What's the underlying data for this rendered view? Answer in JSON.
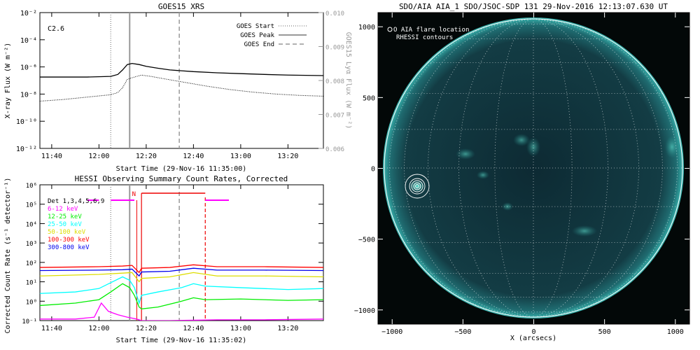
{
  "chart_data": [
    {
      "type": "line",
      "title": "GOES15 XRS",
      "xlabel": "Start Time (29-Nov-16 11:35:00)",
      "ylabel": "X-ray Flux (W m⁻²)",
      "ylabel_right": "GOES15 Lyα Flux (W m⁻²)",
      "x_ticks": [
        "11:40",
        "12:00",
        "12:20",
        "12:40",
        "13:00",
        "13:20"
      ],
      "y_ticks": [
        "10⁻²",
        "10⁻⁴",
        "10⁻⁶",
        "10⁻⁸",
        "10⁻¹⁰",
        "10⁻¹²"
      ],
      "y_ticks_right": [
        "0.010",
        "0.009",
        "0.008",
        "0.007",
        "0.006"
      ],
      "y_log": true,
      "ylim": [
        1e-12,
        0.01
      ],
      "ylim_right": [
        0.006,
        0.01
      ],
      "xlim": [
        "11:35",
        "13:35"
      ],
      "class_label": "C2.6",
      "legend": [
        {
          "label": "GOES Start",
          "style": "dotted",
          "time": "12:05"
        },
        {
          "label": "GOES Peak",
          "style": "solid",
          "time": "12:13"
        },
        {
          "label": "GOES End",
          "style": "dashed",
          "time": "12:34"
        }
      ],
      "series": [
        {
          "style": "solid",
          "x": [
            "11:35",
            "11:45",
            "11:55",
            "12:05",
            "12:08",
            "12:10",
            "12:12",
            "12:14",
            "12:17",
            "12:20",
            "12:25",
            "12:30",
            "12:40",
            "12:50",
            "13:00",
            "13:10",
            "13:20",
            "13:35"
          ],
          "values": [
            1.8e-07,
            1.8e-07,
            1.8e-07,
            2e-07,
            2.8e-07,
            6e-07,
            1.5e-06,
            1.8e-06,
            1.5e-06,
            1.1e-06,
            8e-07,
            6e-07,
            4.5e-07,
            3.7e-07,
            3.2e-07,
            2.8e-07,
            2.5e-07,
            2.3e-07
          ]
        },
        {
          "style": "dotted",
          "x": [
            "11:35",
            "11:45",
            "11:55",
            "12:05",
            "12:08",
            "12:10",
            "12:12",
            "12:14",
            "12:18",
            "12:22",
            "12:28",
            "12:35",
            "12:45",
            "12:55",
            "13:05",
            "13:15",
            "13:25",
            "13:35"
          ],
          "values": [
            3e-09,
            4e-09,
            6e-09,
            9e-09,
            1.3e-08,
            3e-08,
            1.2e-07,
            1.6e-07,
            2.5e-07,
            2e-07,
            1.3e-07,
            8e-08,
            4e-08,
            2.2e-08,
            1.4e-08,
            1e-08,
            8e-09,
            7e-09
          ]
        }
      ]
    },
    {
      "type": "line",
      "title": "HESSI Observing Summary Count Rates, Corrected",
      "xlabel": "Start Time (29-Nov-16 11:35:02)",
      "ylabel": "Corrected Count Rate (s⁻¹ detector⁻¹)",
      "x_ticks": [
        "11:40",
        "12:00",
        "12:20",
        "12:40",
        "13:00",
        "13:20"
      ],
      "y_ticks": [
        "10⁶",
        "10⁵",
        "10⁴",
        "10³",
        "10²",
        "10¹",
        "10⁰",
        "10⁻¹"
      ],
      "y_log": true,
      "ylim": [
        0.1,
        1000000.0
      ],
      "xlim": [
        "11:35",
        "13:35"
      ],
      "detectors_label": "Det 1,3,4,5,6,9",
      "flag_label": "N",
      "series": [
        {
          "name": "6-12 keV",
          "color": "#ff00ff",
          "x": [
            "11:35",
            "11:50",
            "11:58",
            "12:01",
            "12:04",
            "12:08",
            "12:12",
            "12:16",
            "12:18",
            "12:30",
            "12:50",
            "13:10",
            "13:35"
          ],
          "values": [
            0.12,
            0.12,
            0.15,
            0.8,
            0.3,
            0.2,
            0.15,
            0.12,
            0.1,
            0.1,
            0.11,
            0.11,
            0.12
          ]
        },
        {
          "name": "12-25 keV",
          "color": "#00ee00",
          "x": [
            "11:35",
            "11:50",
            "12:00",
            "12:05",
            "12:10",
            "12:13",
            "12:15",
            "12:17",
            "12:18",
            "12:25",
            "12:35",
            "12:40",
            "12:45",
            "13:00",
            "13:20",
            "13:35"
          ],
          "values": [
            0.6,
            0.8,
            1.2,
            3,
            8,
            5,
            2,
            0.5,
            0.4,
            0.5,
            1,
            1.5,
            1.2,
            1.3,
            1.1,
            1.2
          ]
        },
        {
          "name": "25-50 keV",
          "color": "#00ffff",
          "x": [
            "11:35",
            "11:50",
            "12:00",
            "12:05",
            "12:10",
            "12:13",
            "12:15",
            "12:17",
            "12:18",
            "12:25",
            "12:35",
            "12:40",
            "12:45",
            "13:00",
            "13:20",
            "13:35"
          ],
          "values": [
            2.5,
            3,
            4.5,
            9,
            18,
            12,
            5,
            0.8,
            2,
            3,
            5,
            8,
            6,
            5,
            4,
            4.5
          ]
        },
        {
          "name": "50-100 keV",
          "color": "#dddd00",
          "x": [
            "11:35",
            "12:00",
            "12:10",
            "12:14",
            "12:17",
            "12:18",
            "12:30",
            "12:40",
            "12:50",
            "13:10",
            "13:35"
          ],
          "values": [
            20,
            24,
            28,
            30,
            10,
            15,
            18,
            30,
            20,
            20,
            18
          ]
        },
        {
          "name": "100-300 keV",
          "color": "#ff0000",
          "x": [
            "11:35",
            "12:00",
            "12:10",
            "12:14",
            "12:17",
            "12:18",
            "12:30",
            "12:40",
            "12:50",
            "13:10",
            "13:35"
          ],
          "values": [
            55,
            60,
            65,
            70,
            30,
            50,
            55,
            75,
            60,
            60,
            55
          ]
        },
        {
          "name": "300-800 keV",
          "color": "#0000ee",
          "x": [
            "11:35",
            "12:00",
            "12:10",
            "12:14",
            "12:17",
            "12:18",
            "12:30",
            "12:40",
            "12:50",
            "13:10",
            "13:35"
          ],
          "values": [
            38,
            40,
            42,
            45,
            20,
            32,
            35,
            50,
            40,
            40,
            38
          ]
        }
      ]
    },
    {
      "type": "image",
      "title": "SDO/AIA AIA_1 SDO/JSOC-SDP 131 29-Nov-2016 12:13:07.630 UT",
      "xlabel": "X (arcsecs)",
      "x_ticks": [
        "−1000",
        "−500",
        "0",
        "500",
        "1000"
      ],
      "y_ticks": [
        "1000",
        "500",
        "0",
        "−500",
        "−1000"
      ],
      "xlim": [
        -1100,
        1100
      ],
      "ylim": [
        -1100,
        1100
      ],
      "legend": [
        "O AIA flare location",
        "RHESSI contours"
      ],
      "flare_location": {
        "x": -830,
        "y": -130
      }
    }
  ]
}
